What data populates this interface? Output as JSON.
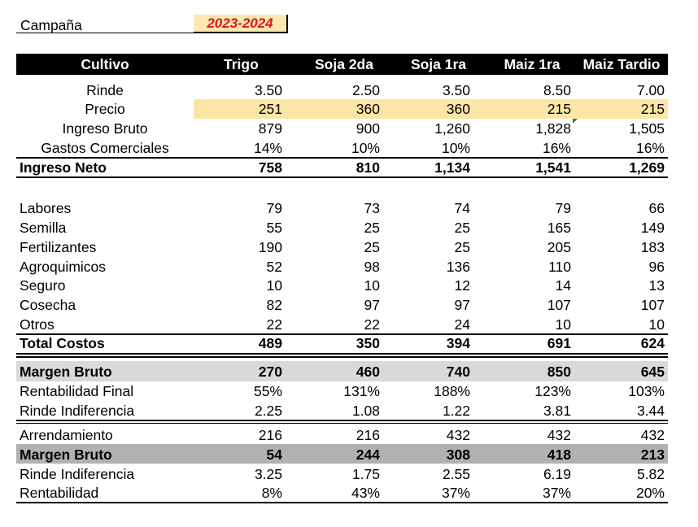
{
  "campaign": {
    "label": "Campaña",
    "value": "2023-2024"
  },
  "header": {
    "title": "Cultivo",
    "crops": [
      "Trigo",
      "Soja 2da",
      "Soja 1ra",
      "Maiz 1ra",
      "Maiz Tardio"
    ]
  },
  "rows": {
    "rinde": {
      "label": "Rinde",
      "values": [
        "3.50",
        "2.50",
        "3.50",
        "8.50",
        "7.00"
      ]
    },
    "precio": {
      "label": "Precio",
      "values": [
        "251",
        "360",
        "360",
        "215",
        "215"
      ]
    },
    "ingreso_bruto": {
      "label": "Ingreso Bruto",
      "values": [
        "879",
        "900",
        "1,260",
        "1,828",
        "1,505"
      ]
    },
    "gastos": {
      "label": "Gastos Comerciales",
      "values": [
        "14%",
        "10%",
        "10%",
        "16%",
        "16%"
      ]
    },
    "ingreso_neto": {
      "label": "Ingreso Neto",
      "values": [
        "758",
        "810",
        "1,134",
        "1,541",
        "1,269"
      ]
    },
    "labores": {
      "label": " Labores",
      "values": [
        "79",
        "73",
        "74",
        "79",
        "66"
      ]
    },
    "semilla": {
      "label": "Semilla",
      "values": [
        "55",
        "25",
        "25",
        "165",
        "149"
      ]
    },
    "fertilizantes": {
      "label": "Fertilizantes",
      "values": [
        "190",
        "25",
        "25",
        "205",
        "183"
      ]
    },
    "agroquimicos": {
      "label": "Agroquimicos",
      "values": [
        "52",
        "98",
        "136",
        "110",
        "96"
      ]
    },
    "seguro": {
      "label": "Seguro",
      "values": [
        "10",
        "10",
        "12",
        "14",
        "13"
      ]
    },
    "cosecha": {
      "label": "Cosecha",
      "values": [
        "82",
        "97",
        "97",
        "107",
        "107"
      ]
    },
    "otros": {
      "label": "Otros",
      "values": [
        "22",
        "22",
        "24",
        "10",
        "10"
      ]
    },
    "total_costos": {
      "label": "Total Costos",
      "values": [
        "489",
        "350",
        "394",
        "691",
        "624"
      ]
    },
    "margen_bruto": {
      "label": "Margen Bruto",
      "values": [
        "270",
        "460",
        "740",
        "850",
        "645"
      ]
    },
    "rent_final": {
      "label": "Rentabilidad Final",
      "values": [
        "55%",
        "131%",
        "188%",
        "123%",
        "103%"
      ]
    },
    "rinde_indif": {
      "label": "Rinde Indiferencia",
      "values": [
        "2.25",
        "1.08",
        "1.22",
        "3.81",
        "3.44"
      ]
    },
    "arrendamiento": {
      "label": "Arrendamiento",
      "values": [
        "216",
        "216",
        "432",
        "432",
        "432"
      ]
    },
    "margen_bruto2": {
      "label": "Margen Bruto",
      "values": [
        "54",
        "244",
        "308",
        "418",
        "213"
      ]
    },
    "rinde_indif2": {
      "label": "Rinde Indiferencia",
      "values": [
        "3.25",
        "1.75",
        "2.55",
        "6.19",
        "5.82"
      ]
    },
    "rentabilidad": {
      "label": "Rentabilidad",
      "values": [
        "8%",
        "43%",
        "37%",
        "37%",
        "20%"
      ]
    }
  },
  "colors": {
    "header_bg": "#000000",
    "price_bg": "#fbe6a6",
    "campaign_value": "#e31414",
    "band_light": "#d9d9d9",
    "band_dark": "#b1b1b1"
  }
}
